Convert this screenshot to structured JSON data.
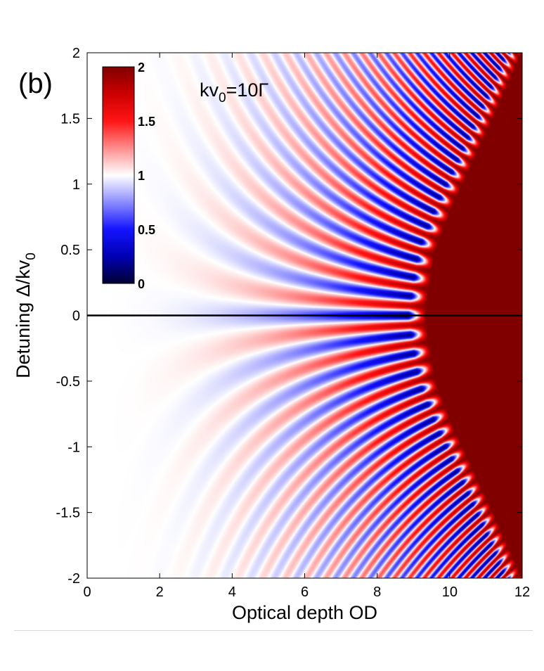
{
  "chart_data": {
    "type": "heatmap",
    "panel_label": "(b)",
    "annotation": {
      "prefix": "kv",
      "subscript": "0",
      "suffix": "=10Γ"
    },
    "xlabel": "Optical depth OD",
    "ylabel": {
      "main": "Detuning Δ/kv",
      "subscript": "0"
    },
    "xlim": [
      0,
      12
    ],
    "ylim": [
      -2,
      2
    ],
    "x_ticks": [
      0,
      2,
      4,
      6,
      8,
      10,
      12
    ],
    "x_tick_labels": [
      "0",
      "2",
      "4",
      "6",
      "8",
      "10",
      "12"
    ],
    "y_ticks": [
      2,
      1.5,
      1,
      0.5,
      0,
      -0.5,
      -1,
      -1.5,
      -2
    ],
    "y_tick_labels": [
      "2",
      "1.5",
      "1",
      "0.5",
      "0",
      "-0.5",
      "-1",
      "-1.5",
      "-2"
    ],
    "colorbar": {
      "range": [
        0,
        2
      ],
      "ticks": [
        2,
        1.5,
        1,
        0.5,
        0
      ],
      "tick_labels": [
        "2",
        "1.5",
        "1",
        "0.5",
        "0"
      ],
      "colormap": [
        "#000033",
        "#0000b3",
        "#1414ff",
        "#8c8cff",
        "#ffffff",
        "#ff8c8c",
        "#ff1414",
        "#cc0000",
        "#800000"
      ]
    },
    "reference_line": {
      "y": 0,
      "color": "#000000"
    },
    "saturation_boundary_od": [
      {
        "detuning": 0,
        "od": 9.3
      },
      {
        "detuning": 0.5,
        "od": 9.6
      },
      {
        "detuning": 0.85,
        "od": 10.1
      },
      {
        "detuning": 1.5,
        "od": 11.2
      },
      {
        "detuning": 2,
        "od": 12
      }
    ]
  }
}
